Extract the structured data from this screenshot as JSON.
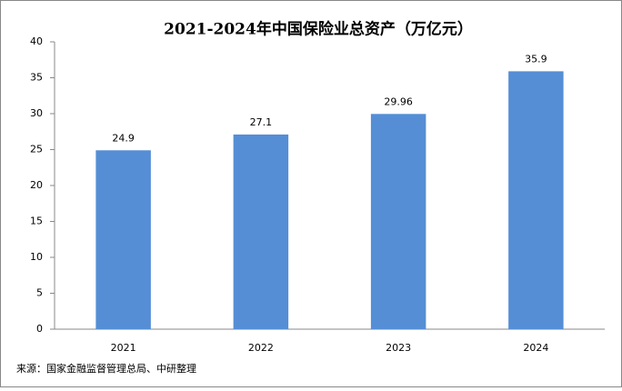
{
  "chart_data": {
    "type": "bar",
    "title": "2021-2024年中国保险业总资产（万亿元）",
    "categories": [
      "2021",
      "2022",
      "2023",
      "2024"
    ],
    "values": [
      24.9,
      27.1,
      29.96,
      35.9
    ],
    "color": "#558ed5",
    "ylim": [
      0,
      40
    ],
    "yticks": [
      0,
      5,
      10,
      15,
      20,
      25,
      30,
      35,
      40
    ],
    "grid": false,
    "source": "来源：国家金融监督管理总局、中研整理"
  }
}
